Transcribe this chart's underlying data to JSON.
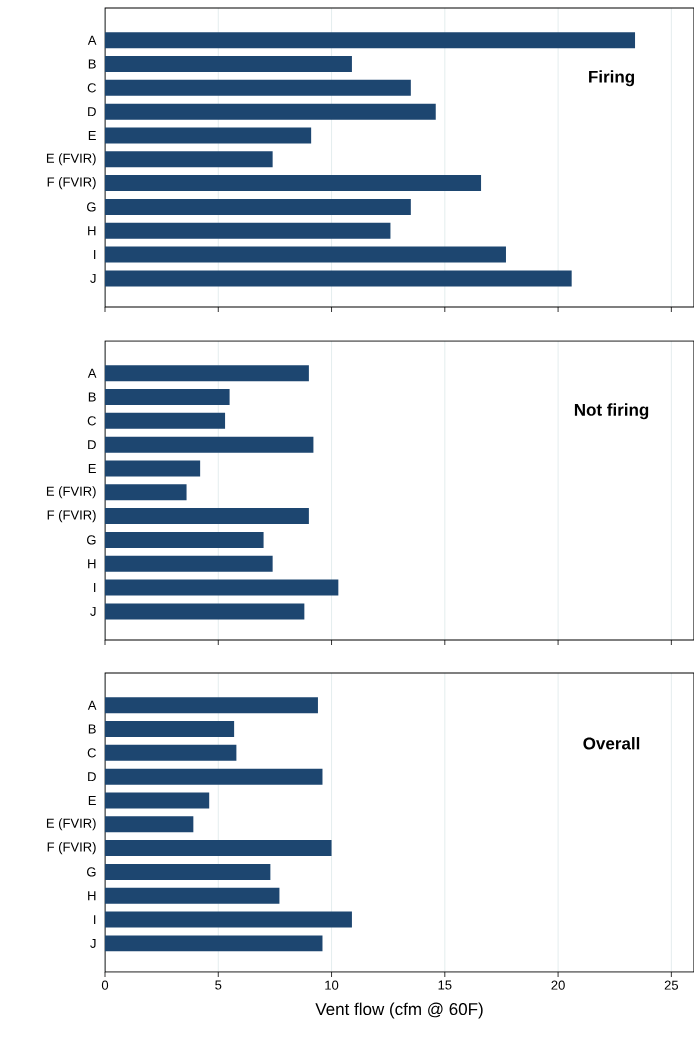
{
  "chart_data": [
    {
      "type": "bar",
      "orientation": "horizontal",
      "title": "Firing",
      "categories": [
        "A",
        "B",
        "C",
        "D",
        "E",
        "E (FVIR)",
        "F (FVIR)",
        "G",
        "H",
        "I",
        "J"
      ],
      "values": [
        23.4,
        10.9,
        13.5,
        14.6,
        9.1,
        7.4,
        16.6,
        13.5,
        12.6,
        17.7,
        20.6
      ],
      "color": "#1d4670",
      "xlim": [
        0,
        26
      ],
      "xticks": [
        0,
        5,
        10,
        15,
        20,
        25
      ],
      "grid": "x",
      "tick_labels": "y"
    },
    {
      "type": "bar",
      "orientation": "horizontal",
      "title": "Not firing",
      "categories": [
        "A",
        "B",
        "C",
        "D",
        "E",
        "E (FVIR)",
        "F (FVIR)",
        "G",
        "H",
        "I",
        "J"
      ],
      "values": [
        9.0,
        5.5,
        5.3,
        9.2,
        4.2,
        3.6,
        9.0,
        7.0,
        7.4,
        10.3,
        8.8
      ],
      "color": "#1d4670",
      "xlim": [
        0,
        26
      ],
      "xticks": [
        0,
        5,
        10,
        15,
        20,
        25
      ],
      "grid": "x",
      "tick_labels": "y"
    },
    {
      "type": "bar",
      "orientation": "horizontal",
      "title": "Overall",
      "xlabel": "Vent flow (cfm @ 60F)",
      "categories": [
        "A",
        "B",
        "C",
        "D",
        "E",
        "E (FVIR)",
        "F (FVIR)",
        "G",
        "H",
        "I",
        "J"
      ],
      "values": [
        9.4,
        5.7,
        5.8,
        9.6,
        4.6,
        3.9,
        10.0,
        7.3,
        7.7,
        10.9,
        9.6
      ],
      "color": "#1d4670",
      "xlim": [
        0,
        26
      ],
      "xticks": [
        0,
        5,
        10,
        15,
        20,
        25
      ],
      "grid": "x"
    }
  ]
}
